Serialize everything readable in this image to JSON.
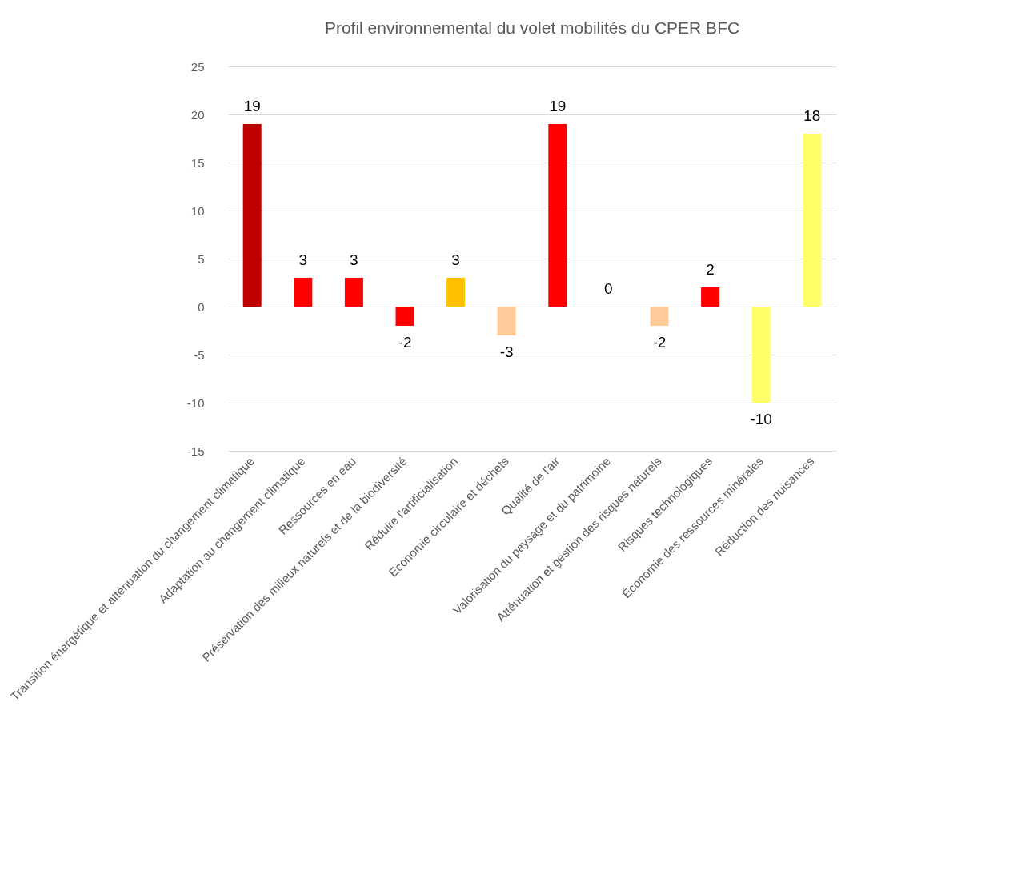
{
  "chart_data": {
    "type": "bar",
    "title": "Profil environnemental du volet mobilités du CPER BFC",
    "categories": [
      "Transition énergétique et atténuation du changement climatique",
      "Adaptation au changement climatique",
      "Ressources en eau",
      "Préservation des milieux naturels et de la biodiversité",
      "Réduire l'artificialisation",
      "Economie circulaire et déchets",
      "Qualité de l'air",
      "Valorisation du paysage et du patrimoine",
      "Atténuation et gestion des risques naturels",
      "Risques technologiques",
      "Économie des ressources minérales",
      "Réduction des nuisances"
    ],
    "values": [
      19,
      3,
      3,
      -2,
      3,
      -3,
      19,
      0,
      -2,
      2,
      -10,
      18
    ],
    "colors": [
      "#c00000",
      "#ff0000",
      "#ff0000",
      "#ff0000",
      "#ffc000",
      "#ffcc99",
      "#ff0000",
      "#ff0000",
      "#ffcc99",
      "#ff0000",
      "#ffff66",
      "#ffff66"
    ],
    "ylim": [
      -15,
      25
    ],
    "yticks": [
      -15,
      -10,
      -5,
      0,
      5,
      10,
      15,
      20,
      25
    ],
    "grid": "y",
    "data_labels": true
  }
}
